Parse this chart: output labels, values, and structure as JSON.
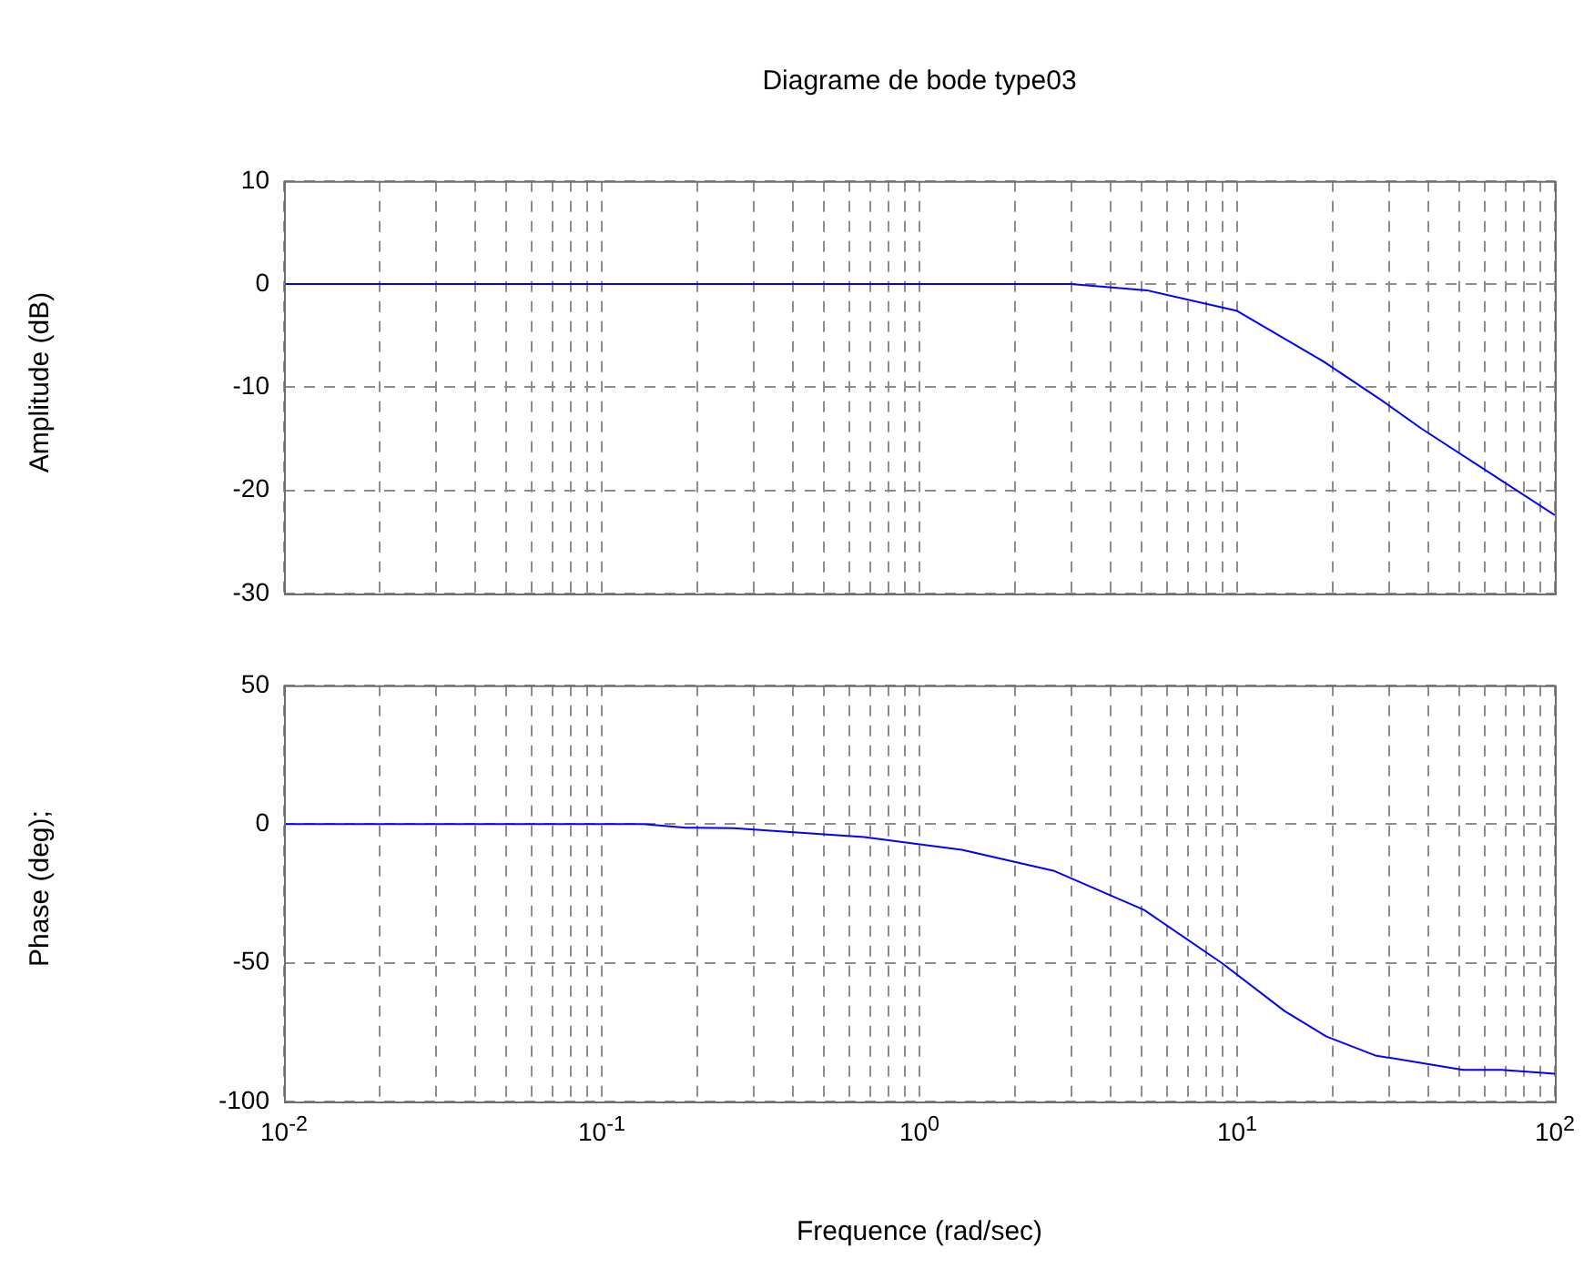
{
  "chart_data": [
    {
      "type": "line",
      "title": "Diagrame de bode type03",
      "ylabel": "Amplitude (dB)",
      "log": "x",
      "grid": true,
      "tick_labels": "y",
      "line_style": "solid",
      "marker": "none",
      "xlim": [
        0.01,
        100
      ],
      "xticks": [
        {
          "value": 0.01,
          "label": null
        },
        {
          "value": 0.02,
          "label": null
        },
        {
          "value": 0.03,
          "label": null
        },
        {
          "value": 0.04,
          "label": null
        },
        {
          "value": 0.05,
          "label": null
        },
        {
          "value": 0.06,
          "label": null
        },
        {
          "value": 0.07,
          "label": null
        },
        {
          "value": 0.08,
          "label": null
        },
        {
          "value": 0.09,
          "label": null
        },
        {
          "value": 0.1,
          "label": null
        },
        {
          "value": 0.2,
          "label": null
        },
        {
          "value": 0.3,
          "label": null
        },
        {
          "value": 0.4,
          "label": null
        },
        {
          "value": 0.5,
          "label": null
        },
        {
          "value": 0.6,
          "label": null
        },
        {
          "value": 0.7,
          "label": null
        },
        {
          "value": 0.8,
          "label": null
        },
        {
          "value": 0.9,
          "label": null
        },
        {
          "value": 1,
          "label": null
        },
        {
          "value": 2,
          "label": null
        },
        {
          "value": 3,
          "label": null
        },
        {
          "value": 4,
          "label": null
        },
        {
          "value": 5,
          "label": null
        },
        {
          "value": 6,
          "label": null
        },
        {
          "value": 7,
          "label": null
        },
        {
          "value": 8,
          "label": null
        },
        {
          "value": 9,
          "label": null
        },
        {
          "value": 10,
          "label": null
        },
        {
          "value": 20,
          "label": null
        },
        {
          "value": 30,
          "label": null
        },
        {
          "value": 40,
          "label": null
        },
        {
          "value": 50,
          "label": null
        },
        {
          "value": 60,
          "label": null
        },
        {
          "value": 70,
          "label": null
        },
        {
          "value": 80,
          "label": null
        },
        {
          "value": 90,
          "label": null
        },
        {
          "value": 100,
          "label": null
        }
      ],
      "ylim": [
        -30,
        10
      ],
      "yticks": [
        -30,
        -20,
        -10,
        0,
        10
      ],
      "series": [
        {
          "color": "#0000ff",
          "x": [
            0.01,
            3,
            5.2,
            10,
            18.7,
            28.6,
            38,
            100
          ],
          "values": [
            0,
            0,
            -0.6,
            -2.6,
            -7.5,
            -11.3,
            -14,
            -22.4
          ]
        }
      ]
    },
    {
      "type": "line",
      "xlabel": "Frequence (rad/sec)",
      "ylabel": "Phase (deg);",
      "log": "x",
      "grid": true,
      "line_style": "solid",
      "marker": "none",
      "xlim": [
        0.01,
        100
      ],
      "xticks": [
        {
          "value": 0.01,
          "label": "10$^{-2}$"
        },
        {
          "value": 0.02,
          "label": null
        },
        {
          "value": 0.03,
          "label": null
        },
        {
          "value": 0.04,
          "label": null
        },
        {
          "value": 0.05,
          "label": null
        },
        {
          "value": 0.06,
          "label": null
        },
        {
          "value": 0.07,
          "label": null
        },
        {
          "value": 0.08,
          "label": null
        },
        {
          "value": 0.09,
          "label": null
        },
        {
          "value": 0.1,
          "label": "10$^{-1}$"
        },
        {
          "value": 0.2,
          "label": null
        },
        {
          "value": 0.3,
          "label": null
        },
        {
          "value": 0.4,
          "label": null
        },
        {
          "value": 0.5,
          "label": null
        },
        {
          "value": 0.6,
          "label": null
        },
        {
          "value": 0.7,
          "label": null
        },
        {
          "value": 0.8,
          "label": null
        },
        {
          "value": 0.9,
          "label": null
        },
        {
          "value": 1,
          "label": "10$^{0}$"
        },
        {
          "value": 2,
          "label": null
        },
        {
          "value": 3,
          "label": null
        },
        {
          "value": 4,
          "label": null
        },
        {
          "value": 5,
          "label": null
        },
        {
          "value": 6,
          "label": null
        },
        {
          "value": 7,
          "label": null
        },
        {
          "value": 8,
          "label": null
        },
        {
          "value": 9,
          "label": null
        },
        {
          "value": 10,
          "label": "10$^{1}$"
        },
        {
          "value": 20,
          "label": null
        },
        {
          "value": 30,
          "label": null
        },
        {
          "value": 40,
          "label": null
        },
        {
          "value": 50,
          "label": null
        },
        {
          "value": 60,
          "label": null
        },
        {
          "value": 70,
          "label": null
        },
        {
          "value": 80,
          "label": null
        },
        {
          "value": 90,
          "label": null
        },
        {
          "value": 100,
          "label": "10$^{2}$"
        }
      ],
      "ylim": [
        -100,
        50
      ],
      "yticks": [
        -100,
        -50,
        0,
        50
      ],
      "series": [
        {
          "color": "#0000ff",
          "x": [
            0.01,
            0.067,
            0.135,
            0.184,
            0.26,
            0.67,
            1.36,
            2.64,
            5.1,
            9,
            14.1,
            19.1,
            27.2,
            51.4,
            68,
            100
          ],
          "values": [
            0,
            0,
            0,
            -1.3,
            -1.5,
            -4.7,
            -9.3,
            -16.8,
            -31,
            -50.3,
            -67.4,
            -76.6,
            -83.4,
            -88.6,
            -88.6,
            -90
          ]
        }
      ]
    }
  ]
}
